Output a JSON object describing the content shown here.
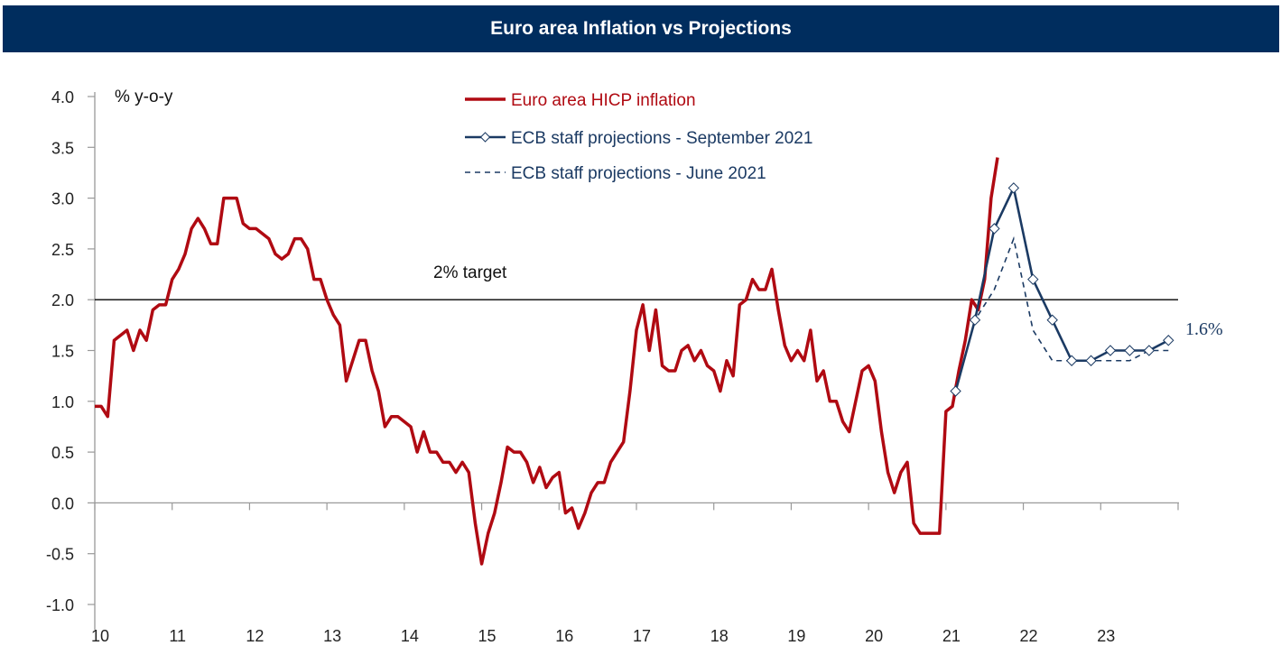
{
  "title": "Euro area Inflation vs Projections",
  "chart_data": {
    "type": "line",
    "title": "Euro area Inflation vs Projections",
    "ylabel": "% y-o-y",
    "xlabel": "",
    "ylim": [
      -1.0,
      4.0
    ],
    "xlim": [
      2010,
      2024
    ],
    "yticks": [
      "-1.0",
      "-0.5",
      "0.0",
      "0.5",
      "1.0",
      "1.5",
      "2.0",
      "2.5",
      "3.0",
      "3.5",
      "4.0"
    ],
    "xticks": [
      "10",
      "11",
      "12",
      "13",
      "14",
      "15",
      "16",
      "17",
      "18",
      "19",
      "20",
      "21",
      "22",
      "23"
    ],
    "grid": false,
    "legend_position": "top-center",
    "target": {
      "value": 2.0,
      "label": "2% target"
    },
    "end_annotation": "1.6%",
    "colors": {
      "hicp": "#b00a12",
      "sept": "#1b3a63",
      "june": "#1b3a63",
      "title_bg": "#002d5e"
    },
    "series": [
      {
        "name": "Euro area HICP inflation",
        "frequency": "monthly",
        "start": 2010.0,
        "values": [
          0.95,
          0.95,
          0.85,
          1.6,
          1.65,
          1.7,
          1.5,
          1.7,
          1.6,
          1.9,
          1.95,
          1.95,
          2.2,
          2.3,
          2.45,
          2.7,
          2.8,
          2.7,
          2.55,
          2.55,
          3.0,
          3.0,
          3.0,
          2.75,
          2.7,
          2.7,
          2.65,
          2.6,
          2.45,
          2.4,
          2.45,
          2.6,
          2.6,
          2.5,
          2.2,
          2.2,
          2.0,
          1.85,
          1.75,
          1.2,
          1.4,
          1.6,
          1.6,
          1.3,
          1.1,
          0.75,
          0.85,
          0.85,
          0.8,
          0.75,
          0.5,
          0.7,
          0.5,
          0.5,
          0.4,
          0.4,
          0.3,
          0.4,
          0.3,
          -0.2,
          -0.6,
          -0.3,
          -0.1,
          0.2,
          0.55,
          0.5,
          0.5,
          0.4,
          0.2,
          0.35,
          0.15,
          0.25,
          0.3,
          -0.1,
          -0.05,
          -0.25,
          -0.1,
          0.1,
          0.2,
          0.2,
          0.4,
          0.5,
          0.6,
          1.1,
          1.7,
          1.95,
          1.5,
          1.9,
          1.35,
          1.3,
          1.3,
          1.5,
          1.55,
          1.4,
          1.5,
          1.35,
          1.3,
          1.1,
          1.4,
          1.25,
          1.95,
          2.0,
          2.2,
          2.1,
          2.1,
          2.3,
          1.9,
          1.55,
          1.4,
          1.5,
          1.4,
          1.7,
          1.2,
          1.3,
          1.0,
          1.0,
          0.8,
          0.7,
          1.0,
          1.3,
          1.35,
          1.2,
          0.7,
          0.3,
          0.1,
          0.3,
          0.4,
          -0.2,
          -0.3,
          -0.3,
          -0.3,
          -0.3,
          0.9,
          0.95,
          1.3,
          1.6,
          2.0,
          1.9,
          2.2,
          3.0,
          3.4
        ]
      },
      {
        "name": "ECB staff projections - September 2021",
        "frequency": "quarterly",
        "start": 2021.125,
        "values": [
          1.1,
          1.8,
          2.7,
          3.1,
          2.2,
          1.8,
          1.4,
          1.4,
          1.5,
          1.5,
          1.5,
          1.6
        ]
      },
      {
        "name": "ECB staff projections - June 2021",
        "frequency": "quarterly",
        "start": 2021.125,
        "values": [
          1.1,
          1.8,
          2.1,
          2.6,
          1.7,
          1.4,
          1.4,
          1.4,
          1.4,
          1.4,
          1.5,
          1.5
        ]
      }
    ]
  }
}
